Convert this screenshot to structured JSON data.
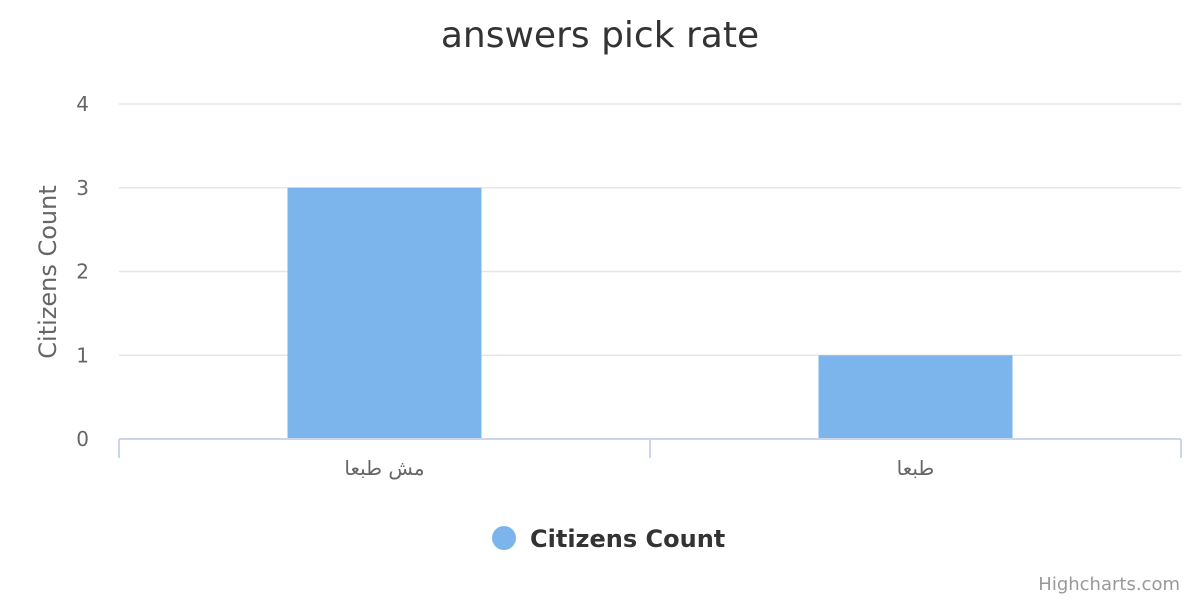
{
  "chart_data": {
    "type": "bar",
    "title": "answers pick rate",
    "xlabel": "",
    "ylabel": "Citizens Count",
    "categories": [
      "مش طبعا",
      "طبعا"
    ],
    "series": [
      {
        "name": "Citizens Count",
        "values": [
          3,
          1
        ]
      }
    ],
    "ylim": [
      0,
      4
    ],
    "yticks": [
      "0",
      "1",
      "2",
      "3",
      "4"
    ],
    "grid": true,
    "legend": "bottom-center",
    "colors": {
      "bar": "#7cb5ec",
      "grid": "#e6e6e6",
      "axis": "#ccd6eb"
    }
  },
  "credits": "Highcharts.com"
}
